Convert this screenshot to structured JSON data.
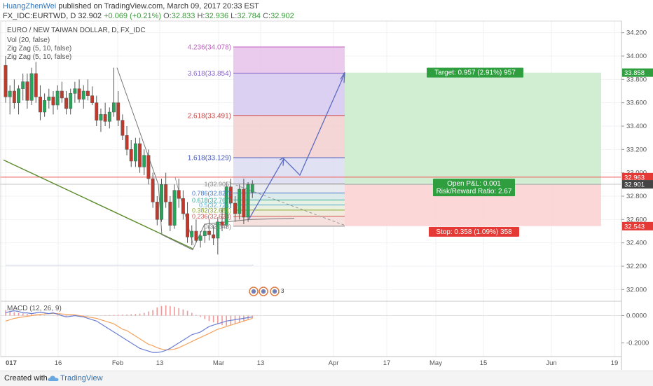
{
  "header": {
    "user": "HuangZhenWei",
    "published": "published on TradingView.com, March 09, 2017 20:33 EST",
    "symbol": "FX_IDC:EURTWD, D",
    "last": "32.902",
    "change": "+0.069 (+0.21%)",
    "o_label": "O:",
    "o": "32.833",
    "h_label": "H:",
    "h": "32.936",
    "l_label": "L:",
    "l": "32.784",
    "c_label": "C:",
    "c": "32.902"
  },
  "legend": {
    "title": "EURO / NEW TAIWAN DOLLAR, D, FX_IDC",
    "items": [
      "Vol (20, false)",
      "Zig Zag (5, 10, false)",
      "Zig Zag (5, 10, false)"
    ]
  },
  "fib_labels": [
    {
      "text": "4.236(34.078)",
      "value": 34.078,
      "color": "#c060c0"
    },
    {
      "text": "3.618(33.854)",
      "value": 33.854,
      "color": "#8866cc"
    },
    {
      "text": "2.618(33.491)",
      "value": 33.491,
      "color": "#cc4444"
    },
    {
      "text": "1.618(33.129)",
      "value": 33.129,
      "color": "#4455bb"
    },
    {
      "text": "1(32.905)",
      "value": 32.905,
      "color": "#888888"
    },
    {
      "text": "0.786(32.827)",
      "value": 32.827,
      "color": "#4477cc"
    },
    {
      "text": "0.618(32.767)",
      "value": 32.767,
      "color": "#33aa99"
    },
    {
      "text": "0.5(32.724)",
      "value": 32.724,
      "color": "#55aacc"
    },
    {
      "text": "0.382(32.681)",
      "value": 32.681,
      "color": "#88aa33"
    },
    {
      "text": "0.236(32.628)",
      "value": 32.628,
      "color": "#cc5555"
    },
    {
      "text": "0(32.543)",
      "value": 32.543,
      "color": "#888888"
    }
  ],
  "position": {
    "target": "Target: 0.957 (2.91%) 957",
    "pnl": "Open P&L: 0.001",
    "rr": "Risk/Reward Ratio: 2.67",
    "stop": "Stop: 0.358 (1.09%) 358",
    "entry": 32.901,
    "target_price": 33.858,
    "stop_price": 32.543
  },
  "events": {
    "badge": "3"
  },
  "macd": {
    "label": "MACD (12, 26, 9)",
    "ticks": [
      "0.0000",
      "-0.2000"
    ],
    "tick_values": [
      0.0,
      -0.2
    ],
    "range": [
      -0.3,
      0.1
    ]
  },
  "price_axis": {
    "ticks": [
      "34.200",
      "34.000",
      "33.800",
      "33.600",
      "33.400",
      "33.200",
      "33.000",
      "32.800",
      "32.600",
      "32.400",
      "32.200",
      "32.000"
    ],
    "tick_values": [
      34.2,
      34.0,
      33.8,
      33.6,
      33.4,
      33.2,
      33.0,
      32.8,
      32.6,
      32.4,
      32.2,
      32.0
    ],
    "range": [
      31.9,
      34.3
    ],
    "tags": [
      {
        "text": "33.858",
        "value": 33.858,
        "color": "#2e9e3e"
      },
      {
        "text": "32.963",
        "value": 32.963,
        "color": "#e53935"
      },
      {
        "text": "32.902",
        "value": 32.902,
        "color": "#777777"
      },
      {
        "text": "32.901",
        "value": 32.901,
        "color": "#444444"
      },
      {
        "text": "32.543",
        "value": 32.543,
        "color": "#e53935"
      }
    ]
  },
  "time_axis": {
    "labels": [
      "017",
      "16",
      "Feb",
      "13",
      "Mar",
      "13",
      "Apr",
      "17",
      "May",
      "15",
      "Jun",
      "19"
    ]
  },
  "chart_data": {
    "type": "candlestick",
    "title": "EURO / NEW TAIWAN DOLLAR, D, FX_IDC",
    "ylim": [
      31.9,
      34.3
    ],
    "x_label_dates": [
      "2017-01",
      "2017-01-16",
      "2017-02",
      "2017-02-13",
      "2017-03",
      "2017-03-13",
      "2017-04",
      "2017-04-17",
      "2017-05",
      "2017-05-15",
      "2017-06",
      "2017-06-19"
    ],
    "ohlc": [
      [
        33.92,
        34.0,
        33.6,
        33.65
      ],
      [
        33.65,
        33.75,
        33.5,
        33.7
      ],
      [
        33.7,
        33.8,
        33.55,
        33.6
      ],
      [
        33.6,
        33.75,
        33.5,
        33.72
      ],
      [
        33.72,
        33.85,
        33.62,
        33.78
      ],
      [
        33.78,
        33.85,
        33.55,
        33.62
      ],
      [
        33.62,
        33.9,
        33.58,
        33.85
      ],
      [
        33.85,
        33.95,
        33.6,
        33.65
      ],
      [
        33.65,
        33.75,
        33.45,
        33.52
      ],
      [
        33.52,
        33.68,
        33.48,
        33.62
      ],
      [
        33.62,
        33.72,
        33.55,
        33.65
      ],
      [
        33.65,
        33.7,
        33.5,
        33.58
      ],
      [
        33.58,
        33.75,
        33.54,
        33.7
      ],
      [
        33.7,
        33.78,
        33.6,
        33.64
      ],
      [
        33.64,
        33.7,
        33.5,
        33.55
      ],
      [
        33.55,
        33.72,
        33.5,
        33.68
      ],
      [
        33.68,
        33.78,
        33.6,
        33.72
      ],
      [
        33.72,
        33.8,
        33.6,
        33.63
      ],
      [
        33.63,
        33.75,
        33.55,
        33.7
      ],
      [
        33.7,
        33.8,
        33.62,
        33.66
      ],
      [
        33.66,
        33.74,
        33.58,
        33.6
      ],
      [
        33.6,
        33.66,
        33.4,
        33.45
      ],
      [
        33.45,
        33.55,
        33.35,
        33.5
      ],
      [
        33.5,
        33.6,
        33.4,
        33.44
      ],
      [
        33.44,
        33.56,
        33.38,
        33.52
      ],
      [
        33.52,
        33.9,
        33.48,
        33.6
      ],
      [
        33.6,
        33.7,
        33.4,
        33.45
      ],
      [
        33.45,
        33.5,
        33.28,
        33.32
      ],
      [
        33.32,
        33.4,
        33.15,
        33.2
      ],
      [
        33.2,
        33.28,
        33.05,
        33.1
      ],
      [
        33.1,
        33.3,
        33.05,
        33.25
      ],
      [
        33.25,
        33.3,
        33.0,
        33.05
      ],
      [
        33.05,
        33.2,
        32.98,
        33.15
      ],
      [
        33.15,
        33.2,
        32.9,
        32.95
      ],
      [
        32.95,
        33.0,
        32.7,
        32.75
      ],
      [
        32.75,
        32.8,
        32.55,
        32.6
      ],
      [
        32.6,
        32.95,
        32.58,
        32.9
      ],
      [
        32.9,
        33.0,
        32.7,
        32.75
      ],
      [
        32.75,
        32.8,
        32.5,
        32.55
      ],
      [
        32.55,
        32.9,
        32.52,
        32.85
      ],
      [
        32.85,
        32.95,
        32.7,
        32.78
      ],
      [
        32.78,
        32.85,
        32.6,
        32.65
      ],
      [
        32.65,
        32.75,
        32.4,
        32.45
      ],
      [
        32.45,
        32.55,
        32.38,
        32.5
      ],
      [
        32.5,
        32.6,
        32.4,
        32.42
      ],
      [
        32.42,
        32.5,
        32.36,
        32.46
      ],
      [
        32.46,
        32.55,
        32.4,
        32.5
      ],
      [
        32.5,
        32.6,
        32.42,
        32.47
      ],
      [
        32.47,
        32.55,
        32.38,
        32.44
      ],
      [
        32.44,
        32.62,
        32.3,
        32.58
      ],
      [
        32.58,
        32.7,
        32.5,
        32.55
      ],
      [
        32.55,
        32.92,
        32.52,
        32.88
      ],
      [
        32.88,
        32.95,
        32.7,
        32.74
      ],
      [
        32.74,
        32.8,
        32.58,
        32.65
      ],
      [
        32.65,
        32.9,
        32.6,
        32.86
      ],
      [
        32.86,
        32.95,
        32.56,
        32.62
      ],
      [
        32.62,
        32.92,
        32.58,
        32.9
      ],
      [
        32.833,
        32.936,
        32.784,
        32.902
      ]
    ],
    "macd_histogram": [
      0.04,
      0.03,
      0.025,
      0.02,
      0.015,
      0.012,
      0.01,
      0.008,
      0.005,
      0.003,
      0.0,
      -0.002,
      -0.004,
      -0.005,
      -0.006,
      -0.005,
      -0.004,
      -0.003,
      -0.002,
      -0.001,
      0.0,
      0.001,
      0.002,
      0.003,
      0.004,
      0.005,
      0.006,
      0.007,
      0.008,
      0.01,
      0.012,
      0.015,
      0.02,
      0.03,
      0.04,
      0.06,
      0.07,
      0.075,
      0.07,
      0.065,
      0.055,
      0.045,
      0.035,
      0.02,
      0.005,
      -0.01,
      -0.025,
      -0.04,
      -0.05,
      -0.06,
      -0.07,
      -0.075,
      -0.07,
      -0.06,
      -0.05,
      -0.04,
      -0.03,
      -0.02
    ],
    "macd_line": [
      0.02,
      0.03,
      0.035,
      0.03,
      0.02,
      0.02,
      0.015,
      0.02,
      0.025,
      0.02,
      0.015,
      0.02,
      0.01,
      0.0,
      -0.01,
      -0.005,
      0.0,
      -0.005,
      -0.01,
      -0.02,
      -0.03,
      -0.04,
      -0.06,
      -0.08,
      -0.1,
      -0.12,
      -0.14,
      -0.16,
      -0.18,
      -0.2,
      -0.22,
      -0.24,
      -0.25,
      -0.26,
      -0.27,
      -0.27,
      -0.265,
      -0.255,
      -0.24,
      -0.22,
      -0.2,
      -0.18,
      -0.16,
      -0.14,
      -0.13,
      -0.12,
      -0.1,
      -0.08,
      -0.07,
      -0.06,
      -0.05,
      -0.04,
      -0.035,
      -0.03,
      -0.025,
      -0.02,
      -0.015,
      -0.01
    ],
    "signal_line": [
      -0.04,
      -0.03,
      -0.02,
      -0.015,
      -0.01,
      -0.005,
      0.0,
      0.005,
      0.01,
      0.012,
      0.014,
      0.016,
      0.015,
      0.012,
      0.01,
      0.008,
      0.005,
      0.0,
      -0.005,
      -0.01,
      -0.015,
      -0.02,
      -0.03,
      -0.04,
      -0.05,
      -0.06,
      -0.08,
      -0.1,
      -0.11,
      -0.13,
      -0.15,
      -0.17,
      -0.19,
      -0.21,
      -0.22,
      -0.235,
      -0.245,
      -0.25,
      -0.25,
      -0.245,
      -0.235,
      -0.22,
      -0.205,
      -0.19,
      -0.175,
      -0.16,
      -0.145,
      -0.13,
      -0.115,
      -0.1,
      -0.09,
      -0.08,
      -0.07,
      -0.06,
      -0.05,
      -0.04,
      -0.03,
      -0.02
    ]
  },
  "footer": {
    "created": "Created with",
    "brand": "TradingView"
  }
}
